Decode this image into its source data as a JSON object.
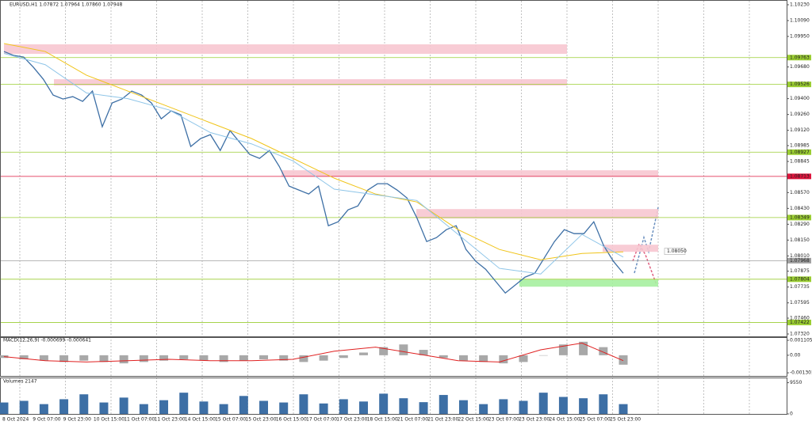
{
  "header": {
    "title": "EURUSD,H1  1.07872 1.07964 1.07860 1.07948"
  },
  "time_axis": {
    "labels": [
      "8 Oct 2024",
      "9 Oct 07:00",
      "9 Oct 23:00",
      "10 Oct 15:00",
      "11 Oct 07:00",
      "11 Oct 23:00",
      "14 Oct 15:00",
      "15 Oct 07:00",
      "15 Oct 23:00",
      "16 Oct 15:00",
      "17 Oct 07:00",
      "17 Oct 23:00",
      "18 Oct 15:00",
      "21 Oct 07:00",
      "21 Oct 23:00",
      "22 Oct 15:00",
      "23 Oct 07:00",
      "23 Oct 23:00",
      "24 Oct 15:00",
      "25 Oct 07:00",
      "25 Oct 23:00"
    ]
  },
  "chart_data": [
    {
      "type": "line",
      "series": [
        {
          "color": "#3d6fa5",
          "values": [
            1.09817,
            1.09782,
            1.09768,
            1.09677,
            1.09572,
            1.09432,
            1.09397,
            1.09418,
            1.09376,
            1.09467,
            1.09152,
            1.09362,
            1.09397,
            1.09467,
            1.09432,
            1.09362,
            1.09222,
            1.09292,
            1.09257,
            1.08977,
            1.09047,
            1.09082,
            1.08942,
            1.09117,
            1.09012,
            1.08907,
            1.08872,
            1.08942,
            1.08802,
            1.08627,
            1.08592,
            1.08557,
            1.08627,
            1.08277,
            1.08312,
            1.08417,
            1.08452,
            1.08592,
            1.08648,
            1.08648,
            1.08592,
            1.08522,
            1.08347,
            1.08137,
            1.08172,
            1.08242,
            1.08277,
            1.08067,
            1.07962,
            1.07892,
            1.07787,
            1.07682,
            1.07752,
            1.07822,
            1.07857,
            1.07997,
            1.08137,
            1.08242,
            1.08207,
            1.08207,
            1.08312,
            1.08102,
            1.07962,
            1.07857
          ]
        },
        {
          "color": "#f0c419",
          "values": [
            1.09887,
            1.09817,
            1.09607,
            1.09467,
            1.09327,
            1.09187,
            1.09047,
            1.08872,
            1.08697,
            1.08557,
            1.08487,
            1.08242,
            1.08067,
            1.07976,
            1.08032,
            1.08046
          ]
        },
        {
          "color": "#8ec5e8",
          "values": [
            1.098,
            1.097,
            1.0945,
            1.094,
            1.093,
            1.091,
            1.09,
            1.0885,
            1.086,
            1.0855,
            1.085,
            1.082,
            1.079,
            1.0785,
            1.082,
            1.08
          ]
        }
      ],
      "ylim": [
        1.0732,
        1.1023
      ],
      "yticks": [
        {
          "value": 1.1023,
          "label": "1.10230"
        },
        {
          "value": 1.1009,
          "label": "1.10090"
        },
        {
          "value": 1.0995,
          "label": "1.09950"
        },
        {
          "value": 1.0968,
          "label": "1.09680"
        },
        {
          "value": 1.094,
          "label": "1.09400"
        },
        {
          "value": 1.0926,
          "label": "1.09260"
        },
        {
          "value": 1.0912,
          "label": "1.09120"
        },
        {
          "value": 1.08985,
          "label": "1.08985"
        },
        {
          "value": 1.08845,
          "label": "1.08845"
        },
        {
          "value": 1.0857,
          "label": "1.08570"
        },
        {
          "value": 1.0843,
          "label": "1.08430"
        },
        {
          "value": 1.0829,
          "label": "1.08290"
        },
        {
          "value": 1.0815,
          "label": "1.08150"
        },
        {
          "value": 1.0801,
          "label": "1.08010"
        },
        {
          "value": 1.07875,
          "label": "1.07875"
        },
        {
          "value": 1.07735,
          "label": "1.07735"
        },
        {
          "value": 1.07595,
          "label": "1.07595"
        },
        {
          "value": 1.0746,
          "label": "1.07460"
        },
        {
          "value": 1.0732,
          "label": "1.07320"
        }
      ],
      "levels": [
        {
          "value": 1.09763,
          "color": "#9acd32"
        },
        {
          "value": 1.09526,
          "color": "#9acd32"
        },
        {
          "value": 1.08927,
          "color": "#9acd32"
        },
        {
          "value": 1.08713,
          "color": "#dc143c"
        },
        {
          "value": 1.08349,
          "color": "#9acd32"
        },
        {
          "value": 1.07968,
          "color": "#a0a0a0"
        },
        {
          "value": 1.07804,
          "color": "#9acd32"
        },
        {
          "value": 1.07422,
          "color": "#9acd32"
        }
      ],
      "zones": [
        {
          "from": 1.09796,
          "to": 1.0988,
          "color": "#f7c6d0"
        },
        {
          "from": 1.09516,
          "to": 1.09572,
          "color": "#f7c6d0"
        },
        {
          "from": 1.08711,
          "to": 1.08767,
          "color": "#f7c6d0"
        },
        {
          "from": 1.0834,
          "to": 1.08424,
          "color": "#f7c6d0"
        },
        {
          "from": 1.08046,
          "to": 1.08109,
          "color": "#f7c6d0"
        },
        {
          "from": 1.07738,
          "to": 1.07801,
          "color": "#a6f0a0"
        }
      ],
      "annotations": [
        {
          "value": 1.0805,
          "label": "1.08050"
        }
      ]
    },
    {
      "type": "bar",
      "title": "MACD(12,26,9) -0.000699 -0.000641",
      "series": [
        {
          "color": "#a8a8a8",
          "values": [
            -0.0002,
            -0.0003,
            -0.0004,
            -0.0005,
            -0.0004,
            -0.0005,
            -0.0006,
            -0.0005,
            -0.0004,
            -0.0003,
            -0.0004,
            -0.0005,
            -0.0004,
            -0.0003,
            -0.0004,
            -0.0005,
            -0.0004,
            -0.0002,
            0.0002,
            0.0006,
            0.0008,
            0.0004,
            -0.0002,
            -0.0004,
            -0.0005,
            -0.0006,
            -0.0005,
            0.0,
            0.0008,
            0.001,
            0.0006,
            -0.0007
          ]
        },
        {
          "color": "#e02020",
          "style": "line",
          "values": [
            -0.0001,
            -0.0004,
            -0.0005,
            -0.0004,
            -0.0003,
            -0.0004,
            -0.0004,
            -0.0003,
            0.0003,
            0.0006,
            0.0001,
            -0.0004,
            -0.0005,
            0.0004,
            0.0009,
            -0.0004
          ]
        }
      ],
      "ylim": [
        -0.00159,
        0.00134
      ],
      "yticks": [
        0.001105,
        {
          "value": 0,
          "label": "0.00"
        },
        -0.001301
      ]
    },
    {
      "type": "bar",
      "title": "Volumes 2147",
      "series": [
        {
          "color": "#3d6fa5",
          "values": [
            3500,
            4000,
            3000,
            4500,
            6000,
            3500,
            5000,
            3000,
            4200,
            6500,
            3800,
            3000,
            5500,
            4000,
            3500,
            6000,
            3200,
            4500,
            3800,
            6200,
            4800,
            3600,
            5800,
            4200,
            3000,
            4500,
            4000,
            6500,
            5200,
            4800,
            6000,
            3000
          ]
        }
      ],
      "ylim": [
        0,
        10900
      ],
      "yticks": [
        9550,
        0
      ]
    }
  ]
}
